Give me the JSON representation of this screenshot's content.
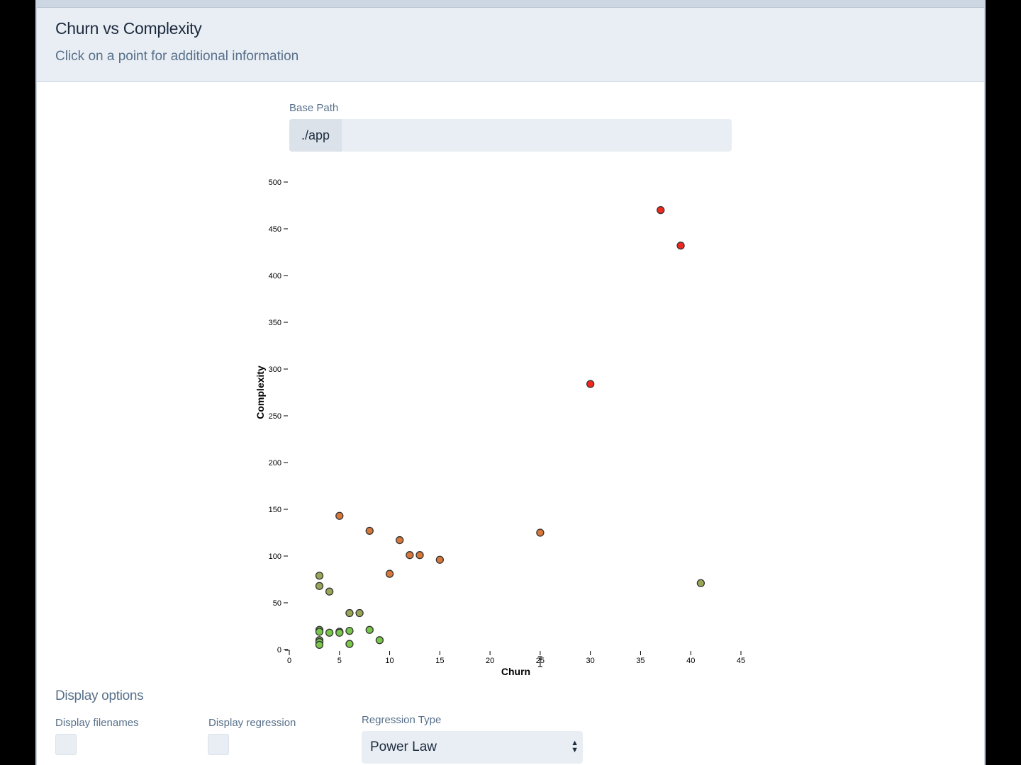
{
  "header": {
    "title": "Churn vs Complexity",
    "subtitle": "Click on a point for additional information"
  },
  "base_path": {
    "label": "Base Path",
    "prefix": "./app",
    "value": ""
  },
  "display_options": {
    "title": "Display options",
    "filenames_label": "Display filenames",
    "regression_label": "Display regression",
    "regression_type_label": "Regression Type",
    "regression_type_value": "Power Law"
  },
  "chart_data": {
    "type": "scatter",
    "xlabel": "Churn",
    "ylabel": "Complexity",
    "xlim": [
      0,
      45
    ],
    "ylim": [
      0,
      500
    ],
    "xticks": [
      0,
      5,
      10,
      15,
      20,
      25,
      30,
      35,
      40,
      45
    ],
    "yticks": [
      0,
      50,
      100,
      150,
      200,
      250,
      300,
      350,
      400,
      450,
      500
    ],
    "color_scale": [
      "#78c64a",
      "#9aa656",
      "#d8773a",
      "#f02820"
    ],
    "points": [
      {
        "x": 37,
        "y": 470
      },
      {
        "x": 39,
        "y": 432
      },
      {
        "x": 30,
        "y": 284
      },
      {
        "x": 5,
        "y": 143
      },
      {
        "x": 8,
        "y": 127
      },
      {
        "x": 11,
        "y": 117
      },
      {
        "x": 25,
        "y": 125
      },
      {
        "x": 12,
        "y": 101
      },
      {
        "x": 13,
        "y": 101
      },
      {
        "x": 15,
        "y": 96
      },
      {
        "x": 10,
        "y": 81
      },
      {
        "x": 41,
        "y": 71
      },
      {
        "x": 3,
        "y": 79
      },
      {
        "x": 3,
        "y": 68
      },
      {
        "x": 4,
        "y": 62
      },
      {
        "x": 6,
        "y": 39
      },
      {
        "x": 7,
        "y": 39
      },
      {
        "x": 3,
        "y": 21
      },
      {
        "x": 3,
        "y": 19
      },
      {
        "x": 4,
        "y": 18
      },
      {
        "x": 5,
        "y": 19
      },
      {
        "x": 5,
        "y": 18
      },
      {
        "x": 6,
        "y": 20
      },
      {
        "x": 8,
        "y": 21
      },
      {
        "x": 9,
        "y": 10
      },
      {
        "x": 3,
        "y": 10
      },
      {
        "x": 3,
        "y": 8
      },
      {
        "x": 3,
        "y": 5
      },
      {
        "x": 6,
        "y": 6
      }
    ]
  }
}
